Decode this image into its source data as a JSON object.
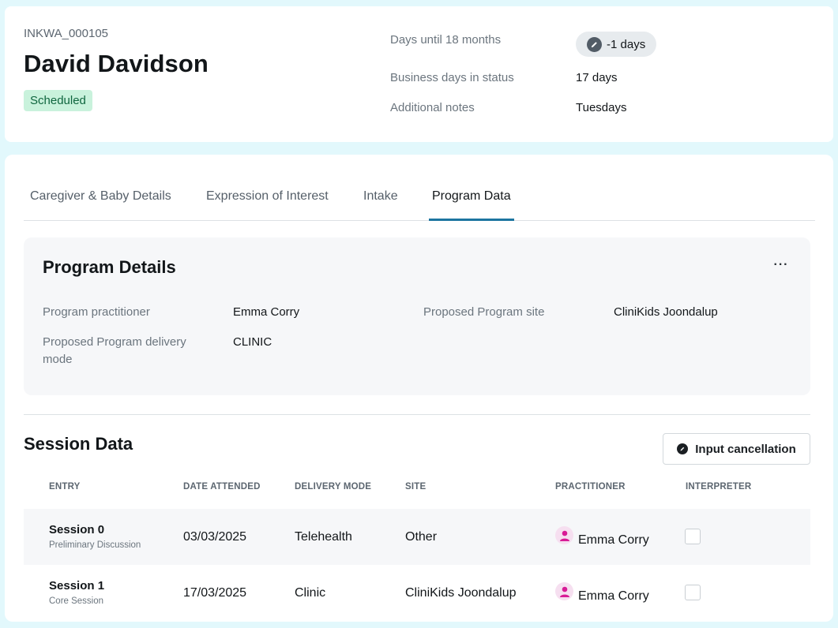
{
  "header": {
    "record_id": "INKWA_000105",
    "name": "David Davidson",
    "status": "Scheduled",
    "info": [
      {
        "label": "Days until 18 months",
        "value": "-1 days"
      },
      {
        "label": "Business days in status",
        "value": "17 days"
      },
      {
        "label": "Additional notes",
        "value": "Tuesdays"
      }
    ]
  },
  "tabs": [
    {
      "label": "Caregiver & Baby Details",
      "active": false
    },
    {
      "label": "Expression of Interest",
      "active": false
    },
    {
      "label": "Intake",
      "active": false
    },
    {
      "label": "Program Data",
      "active": true
    }
  ],
  "program_details": {
    "title": "Program Details",
    "more_label": "···",
    "fields": [
      {
        "label": "Program practitioner",
        "value": "Emma Corry"
      },
      {
        "label": "Proposed Program site",
        "value": "CliniKids Joondalup"
      },
      {
        "label": "Proposed Program delivery mode",
        "value": "CLINIC"
      }
    ]
  },
  "session_data": {
    "title": "Session Data",
    "cancel_button_label": "Input cancellation",
    "columns": [
      "ENTRY",
      "DATE ATTENDED",
      "DELIVERY MODE",
      "SITE",
      "PRACTITIONER",
      "INTERPRETER"
    ],
    "rows": [
      {
        "entry": "Session 0",
        "entry_type": "Preliminary Discussion",
        "date": "03/03/2025",
        "mode": "Telehealth",
        "site": "Other",
        "practitioner": "Emma Corry",
        "interpreter": false
      },
      {
        "entry": "Session 1",
        "entry_type": "Core Session",
        "date": "17/03/2025",
        "mode": "Clinic",
        "site": "CliniKids Joondalup",
        "practitioner": "Emma Corry",
        "interpreter": false
      }
    ]
  },
  "colors": {
    "page_background": "#e2f8fc",
    "status_badge_bg": "#c9f2dc",
    "status_badge_text": "#10663f",
    "active_tab_underline": "#1c75a0",
    "avatar_icon": "#d81b96"
  },
  "icons": {
    "days_pill": "pencil-icon",
    "cancel_button": "cancel-circle-icon",
    "practitioner": "person-icon"
  }
}
